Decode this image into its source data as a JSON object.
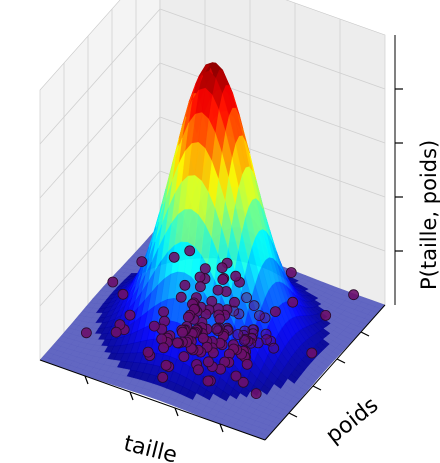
{
  "chart_data": {
    "type": "surface3d",
    "title": "",
    "xlabel": "taille",
    "ylabel": "poids",
    "zlabel": "P(taille, poids)",
    "ticks_labeled": false,
    "grid": true,
    "colormap": "jet",
    "surface_floor_color": "#5a5fbf",
    "scatter_color": "#6b0f6b",
    "pane_color": "#f4f4f4",
    "grid_color": "#d0d0d0",
    "distribution": {
      "kind": "bivariate-gaussian",
      "mean": [
        0.5,
        0.5
      ],
      "std": [
        0.16,
        0.16
      ],
      "peak": 1.0
    },
    "scatter_points_count": 150
  }
}
